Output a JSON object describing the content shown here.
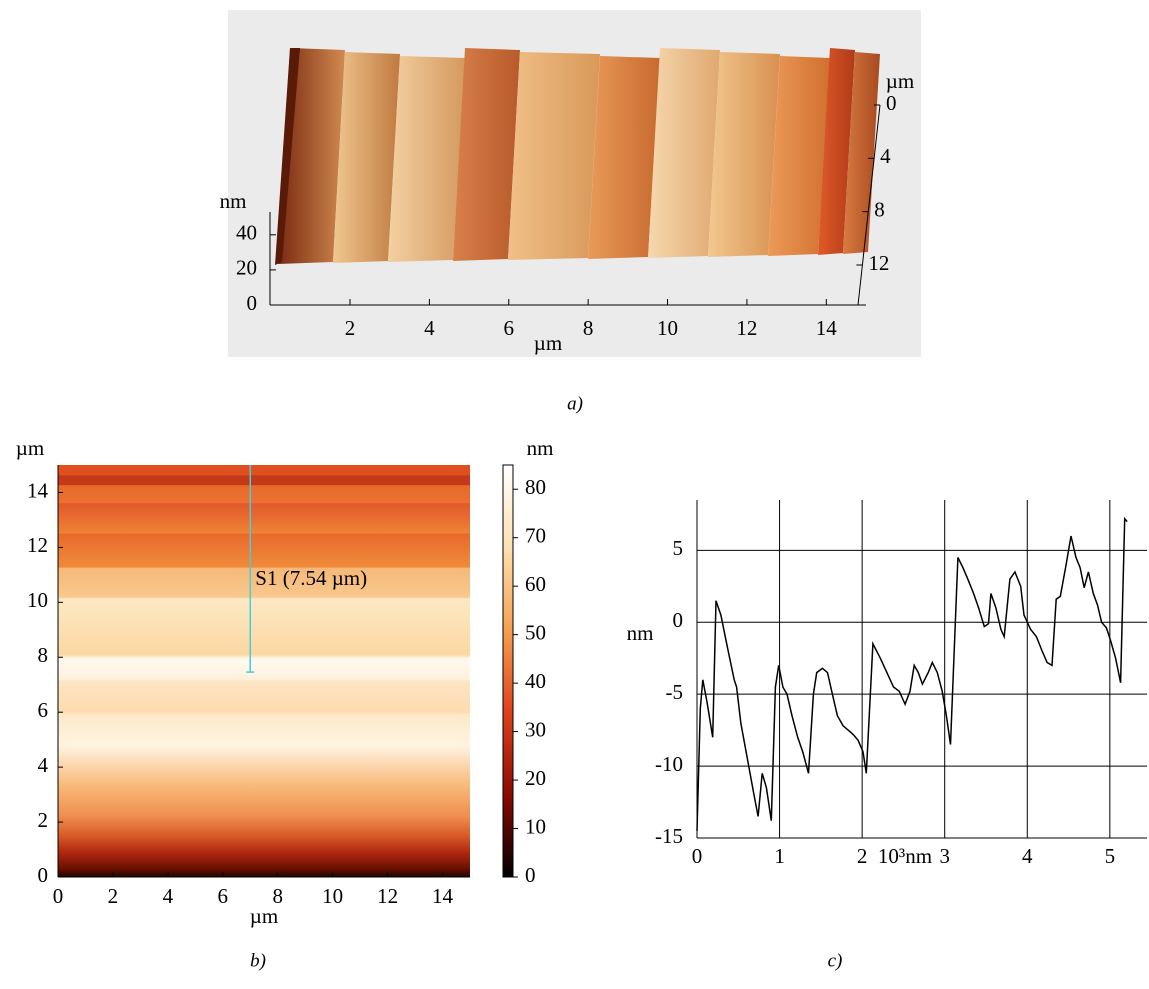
{
  "chart_data": [
    {
      "type": "surface3d",
      "caption": "a)",
      "x_label": "µm",
      "y_label": "µm",
      "z_label": "nm",
      "xlim": [
        0,
        15
      ],
      "xticks": [
        2,
        4,
        6,
        8,
        10,
        12,
        14
      ],
      "ylim": [
        0,
        15
      ],
      "yticks": [
        0,
        4,
        8,
        12
      ],
      "zlim": [
        0,
        53
      ],
      "zticks": [
        0,
        20,
        40
      ]
    },
    {
      "type": "heatmap",
      "caption": "b)",
      "x_label": "µm",
      "y_label": "µm",
      "colorbar_label": "nm",
      "xlim": [
        0,
        15
      ],
      "xticks": [
        0,
        2,
        4,
        6,
        8,
        10,
        12,
        14
      ],
      "ylim": [
        0,
        15
      ],
      "yticks": [
        0,
        2,
        4,
        6,
        8,
        10,
        12,
        14
      ],
      "clim": [
        0,
        85
      ],
      "cticks": [
        0,
        10,
        20,
        30,
        40,
        50,
        60,
        70,
        80
      ],
      "colormap": [
        "#000000",
        "#8b0a00",
        "#e0401a",
        "#f5a050",
        "#fde0b0",
        "#ffffff"
      ],
      "profile": {
        "label": "S1 (7.54 µm)",
        "x": 7,
        "y": [
          7.46,
          15
        ],
        "color": "#40d0e0"
      }
    },
    {
      "type": "line",
      "caption": "c)",
      "x_label": "10³nm",
      "y_label": "nm",
      "grid": true,
      "xlim": [
        0,
        5.45
      ],
      "xticks": [
        0,
        1,
        2,
        3,
        4,
        5
      ],
      "ylim": [
        -15,
        8.5
      ],
      "yticks": [
        -15,
        -10,
        -5,
        0,
        5
      ],
      "x": [
        0,
        0.04,
        0.07,
        0.12,
        0.19,
        0.23,
        0.29,
        0.36,
        0.45,
        0.48,
        0.53,
        0.61,
        0.69,
        0.74,
        0.79,
        0.84,
        0.9,
        0.95,
        0.99,
        1.04,
        1.09,
        1.15,
        1.22,
        1.28,
        1.35,
        1.41,
        1.45,
        1.52,
        1.58,
        1.64,
        1.7,
        1.77,
        1.83,
        1.89,
        1.95,
        2.01,
        2.05,
        2.13,
        2.22,
        2.3,
        2.38,
        2.45,
        2.52,
        2.58,
        2.63,
        2.68,
        2.73,
        2.8,
        2.85,
        2.91,
        2.97,
        3.02,
        3.07,
        3.16,
        3.22,
        3.28,
        3.35,
        3.41,
        3.48,
        3.53,
        3.56,
        3.62,
        3.68,
        3.72,
        3.79,
        3.85,
        3.92,
        3.96,
        4.04,
        4.11,
        4.18,
        4.24,
        4.3,
        4.35,
        4.4,
        4.47,
        4.53,
        4.59,
        4.64,
        4.69,
        4.74,
        4.8,
        4.85,
        4.9,
        4.96,
        5.01,
        5.07,
        5.13,
        5.18,
        5.21
      ],
      "series": [
        {
          "color": "#000000",
          "values": [
            -14.5,
            -6,
            -4,
            -5.5,
            -8,
            1.5,
            0.5,
            -1.5,
            -4,
            -4.5,
            -7,
            -9.5,
            -12,
            -13.5,
            -10.5,
            -11.5,
            -13.8,
            -4.5,
            -3,
            -4.5,
            -5,
            -6.5,
            -8,
            -9,
            -10.5,
            -5,
            -3.5,
            -3.2,
            -3.5,
            -5,
            -6.5,
            -7.2,
            -7.5,
            -7.8,
            -8.2,
            -9,
            -10.5,
            -1.5,
            -2.5,
            -3.5,
            -4.5,
            -4.8,
            -5.7,
            -4.8,
            -3,
            -3.5,
            -4.3,
            -3.5,
            -2.8,
            -3.5,
            -4.8,
            -6.5,
            -8.5,
            4.5,
            3.8,
            3,
            2,
            1,
            -0.3,
            -0.1,
            2,
            1,
            -0.5,
            -1,
            3,
            3.5,
            2.5,
            0.5,
            -0.5,
            -1,
            -2,
            -2.8,
            -3,
            1.6,
            1.8,
            4,
            6,
            4.5,
            3.8,
            2.4,
            3.5,
            2,
            1.2,
            0,
            -0.4,
            -1.3,
            -2.5,
            -4.2,
            7.2,
            7
          ]
        }
      ]
    }
  ]
}
